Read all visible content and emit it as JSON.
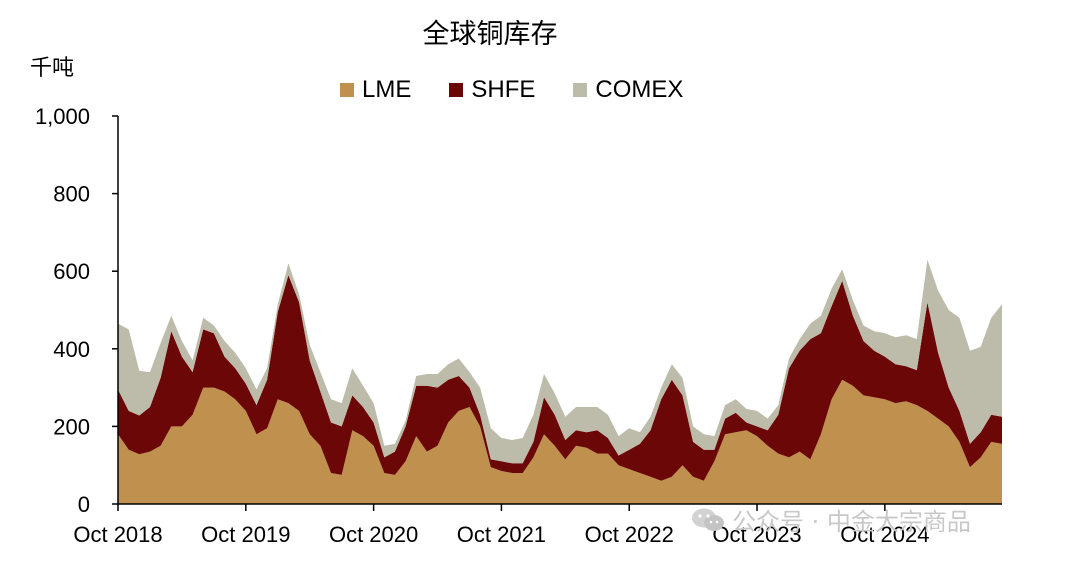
{
  "chart_data": {
    "type": "area",
    "stacked": true,
    "title": "全球铜库存",
    "unit_label": "千吨",
    "ylim": [
      0,
      1000
    ],
    "y_ticks": [
      0,
      200,
      400,
      600,
      800,
      1000
    ],
    "y_tick_labels": [
      "0",
      "200",
      "400",
      "600",
      "800",
      "1,000"
    ],
    "x_range": [
      "2018-10",
      "2025-09"
    ],
    "x_ticks": [
      "2018-10",
      "2019-10",
      "2020-10",
      "2021-10",
      "2022-10",
      "2023-10",
      "2024-10"
    ],
    "x_tick_labels": [
      "Oct 2018",
      "Oct 2019",
      "Oct 2020",
      "Oct 2021",
      "Oct 2022",
      "Oct 2023",
      "Oct 2024"
    ],
    "legend_position": "top",
    "x": [
      "2018-10",
      "2018-11",
      "2018-12",
      "2019-01",
      "2019-02",
      "2019-03",
      "2019-04",
      "2019-05",
      "2019-06",
      "2019-07",
      "2019-08",
      "2019-09",
      "2019-10",
      "2019-11",
      "2019-12",
      "2020-01",
      "2020-02",
      "2020-03",
      "2020-04",
      "2020-05",
      "2020-06",
      "2020-07",
      "2020-08",
      "2020-09",
      "2020-10",
      "2020-11",
      "2020-12",
      "2021-01",
      "2021-02",
      "2021-03",
      "2021-04",
      "2021-05",
      "2021-06",
      "2021-07",
      "2021-08",
      "2021-09",
      "2021-10",
      "2021-11",
      "2021-12",
      "2022-01",
      "2022-02",
      "2022-03",
      "2022-04",
      "2022-05",
      "2022-06",
      "2022-07",
      "2022-08",
      "2022-09",
      "2022-10",
      "2022-11",
      "2022-12",
      "2023-01",
      "2023-02",
      "2023-03",
      "2023-04",
      "2023-05",
      "2023-06",
      "2023-07",
      "2023-08",
      "2023-09",
      "2023-10",
      "2023-11",
      "2023-12",
      "2024-01",
      "2024-02",
      "2024-03",
      "2024-04",
      "2024-05",
      "2024-06",
      "2024-07",
      "2024-08",
      "2024-09",
      "2024-10",
      "2024-11",
      "2024-12",
      "2025-01",
      "2025-02",
      "2025-03",
      "2025-04",
      "2025-05",
      "2025-06",
      "2025-07",
      "2025-08",
      "2025-09"
    ],
    "series": [
      {
        "name": "LME",
        "color": "#C0904F",
        "values": [
          180,
          140,
          128,
          135,
          150,
          200,
          200,
          230,
          300,
          300,
          290,
          270,
          240,
          180,
          195,
          270,
          260,
          240,
          180,
          150,
          80,
          75,
          190,
          175,
          150,
          80,
          75,
          110,
          175,
          135,
          150,
          210,
          240,
          250,
          200,
          95,
          85,
          80,
          80,
          120,
          180,
          150,
          115,
          150,
          145,
          130,
          130,
          100,
          90,
          80,
          70,
          60,
          70,
          100,
          70,
          60,
          110,
          180,
          185,
          190,
          175,
          150,
          130,
          120,
          135,
          115,
          180,
          270,
          320,
          305,
          280,
          275,
          270,
          260,
          265,
          255,
          240,
          220,
          200,
          160,
          95,
          120,
          160,
          155
        ]
      },
      {
        "name": "SHFE",
        "color": "#6B0707",
        "values": [
          115,
          100,
          100,
          115,
          175,
          245,
          180,
          110,
          150,
          140,
          90,
          80,
          70,
          75,
          125,
          225,
          330,
          280,
          190,
          140,
          130,
          125,
          90,
          75,
          60,
          40,
          60,
          90,
          130,
          170,
          150,
          110,
          90,
          50,
          30,
          20,
          25,
          25,
          25,
          40,
          95,
          80,
          50,
          40,
          40,
          60,
          40,
          25,
          50,
          75,
          120,
          210,
          250,
          180,
          90,
          80,
          30,
          40,
          50,
          20,
          25,
          40,
          100,
          230,
          260,
          310,
          260,
          240,
          255,
          180,
          140,
          120,
          110,
          100,
          90,
          90,
          280,
          170,
          100,
          80,
          60,
          65,
          70,
          70
        ]
      },
      {
        "name": "COMEX",
        "color": "#BDBBA9",
        "values": [
          170,
          210,
          115,
          90,
          90,
          40,
          40,
          30,
          30,
          20,
          40,
          40,
          40,
          40,
          30,
          20,
          30,
          20,
          40,
          50,
          60,
          60,
          70,
          55,
          50,
          30,
          20,
          15,
          25,
          30,
          35,
          40,
          45,
          40,
          70,
          80,
          60,
          60,
          65,
          70,
          60,
          55,
          60,
          60,
          65,
          60,
          60,
          50,
          55,
          30,
          35,
          30,
          40,
          45,
          40,
          40,
          35,
          35,
          35,
          35,
          40,
          30,
          25,
          25,
          30,
          40,
          45,
          45,
          30,
          40,
          40,
          50,
          60,
          70,
          80,
          80,
          110,
          160,
          200,
          240,
          240,
          220,
          250,
          290
        ]
      }
    ]
  },
  "watermark": {
    "text": "公众号 · 中金大宗商品",
    "icon": "wechat-icon"
  }
}
